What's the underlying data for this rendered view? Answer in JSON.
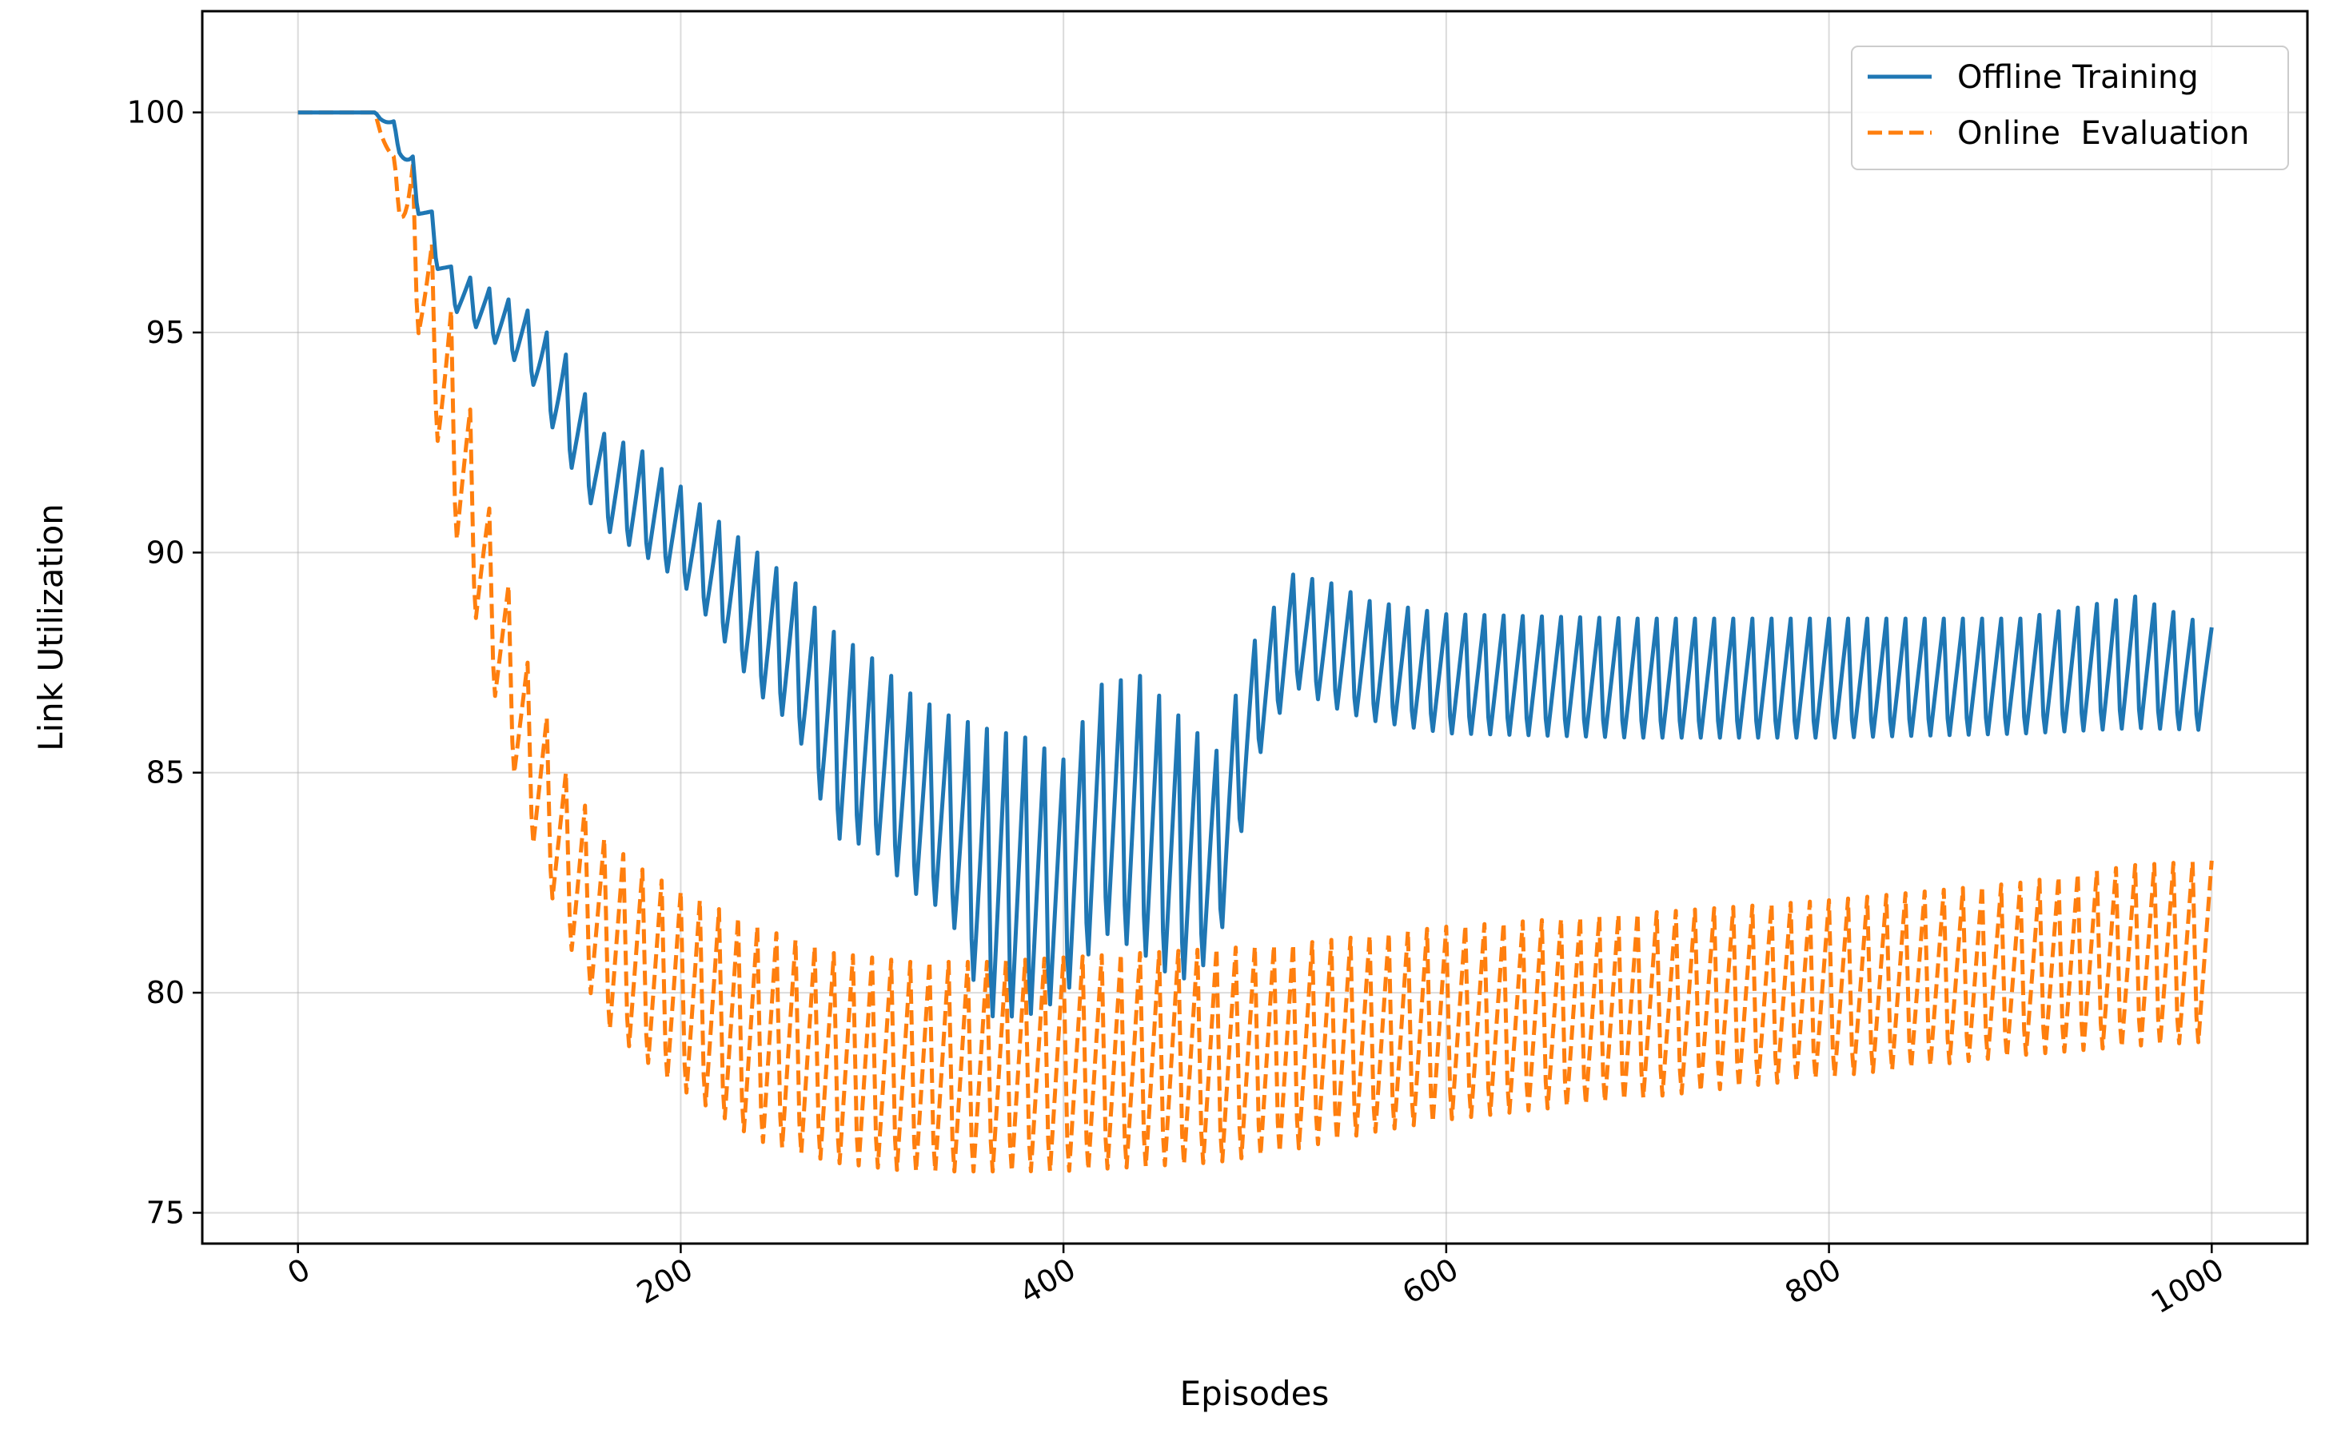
{
  "chart_data": {
    "type": "line",
    "title": "",
    "xlabel": "Episodes",
    "ylabel": "Link Utilization",
    "xlim": [
      -50,
      1050
    ],
    "ylim": [
      74.3,
      102.3
    ],
    "xticks": [
      0,
      200,
      400,
      600,
      800,
      1000
    ],
    "xtick_labels": [
      "0",
      "200",
      "400",
      "600",
      "800",
      "1000"
    ],
    "yticks": [
      75,
      80,
      85,
      90,
      95,
      100
    ],
    "ytick_labels": [
      "75",
      "80",
      "85",
      "90",
      "95",
      "100"
    ],
    "grid": true,
    "legend_position": "top-right",
    "legend": [
      {
        "label": "Offline Training",
        "color": "#1f77b4",
        "style": "solid"
      },
      {
        "label": "Online  Evaluation",
        "color": "#ff7f0e",
        "style": "dashed"
      }
    ],
    "series": [
      {
        "name": "Offline Training",
        "color": "#1f77b4",
        "style": "solid",
        "envelope": {
          "x": [
            0,
            40,
            50,
            60,
            80,
            100,
            120,
            140,
            160,
            180,
            200,
            220,
            240,
            260,
            280,
            300,
            320,
            340,
            360,
            380,
            400,
            420,
            440,
            460,
            480,
            500,
            520,
            540,
            560,
            600,
            700,
            800,
            900,
            960,
            1000
          ],
          "upper": [
            100,
            100,
            99.8,
            99.0,
            96.5,
            96.0,
            95.5,
            94.5,
            92.7,
            92.3,
            91.5,
            90.7,
            90.0,
            89.3,
            88.2,
            87.6,
            86.8,
            86.3,
            86.0,
            85.8,
            85.3,
            87.0,
            87.2,
            86.3,
            85.5,
            88.0,
            89.5,
            89.3,
            88.9,
            88.6,
            88.5,
            88.5,
            88.5,
            89.0,
            88.3
          ],
          "lower": [
            100,
            100,
            99.5,
            98.0,
            95.5,
            94.8,
            94.0,
            92.0,
            90.4,
            89.8,
            89.2,
            88.0,
            86.6,
            85.8,
            83.2,
            83.0,
            82.0,
            81.5,
            79.0,
            79.0,
            79.5,
            81.0,
            80.5,
            79.8,
            80.5,
            85.0,
            86.8,
            86.3,
            86.0,
            85.7,
            85.6,
            85.6,
            85.7,
            85.8,
            85.8
          ]
        },
        "period": 10
      },
      {
        "name": "Online  Evaluation",
        "color": "#ff7f0e",
        "style": "dashed",
        "envelope": {
          "x": [
            0,
            40,
            50,
            60,
            70,
            80,
            100,
            120,
            140,
            160,
            180,
            200,
            240,
            280,
            320,
            360,
            400,
            440,
            480,
            520,
            560,
            600,
            700,
            800,
            900,
            960,
            1000
          ],
          "upper": [
            100,
            100,
            99.0,
            98.8,
            97.0,
            95.5,
            91.0,
            87.5,
            85.0,
            83.5,
            82.8,
            82.3,
            81.5,
            80.9,
            80.7,
            80.7,
            80.8,
            80.9,
            81.0,
            81.1,
            81.3,
            81.5,
            81.8,
            82.1,
            82.5,
            82.9,
            83.0
          ],
          "lower": [
            100,
            100,
            98.5,
            95.5,
            93.0,
            90.5,
            87.0,
            83.5,
            81.0,
            79.0,
            78.2,
            77.5,
            76.3,
            75.8,
            75.6,
            75.6,
            75.6,
            75.7,
            75.8,
            76.1,
            76.5,
            76.8,
            77.3,
            77.8,
            78.3,
            78.5,
            78.6
          ]
        },
        "period": 10
      }
    ]
  }
}
